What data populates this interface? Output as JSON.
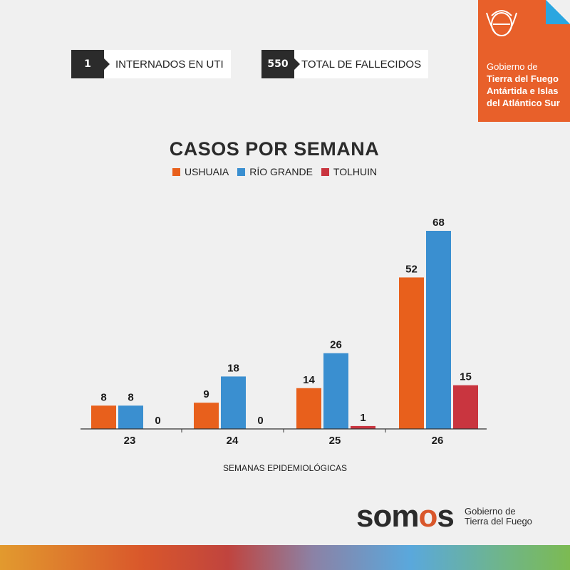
{
  "stats": [
    {
      "value": "1",
      "label": "INTERNADOS EN UTI"
    },
    {
      "value": "550",
      "label": "TOTAL DE FALLECIDOS"
    }
  ],
  "gov_badge": {
    "line1": "Gobierno de",
    "line2": "Tierra del Fuego",
    "line3": "Antártida e Islas",
    "line4": "del Atlántico Sur"
  },
  "footer": {
    "logo": "somos",
    "sub1": "Gobierno de",
    "sub2": "Tierra del Fuego"
  },
  "colors": {
    "ushuaia": "#e8601c",
    "rio_grande": "#3a8fd0",
    "tolhuin": "#c9353f",
    "badge": "#e8602a"
  },
  "chart_data": {
    "type": "bar",
    "title": "CASOS POR SEMANA",
    "xlabel": "SEMANAS EPIDEMIOLÓGICAS",
    "categories": [
      "23",
      "24",
      "25",
      "26"
    ],
    "series": [
      {
        "name": "USHUAIA",
        "values": [
          8,
          9,
          14,
          52
        ]
      },
      {
        "name": "RÍO GRANDE",
        "values": [
          8,
          18,
          26,
          68
        ]
      },
      {
        "name": "TOLHUIN",
        "values": [
          0,
          0,
          1,
          15
        ]
      }
    ],
    "legend": "top",
    "grid": false
  }
}
